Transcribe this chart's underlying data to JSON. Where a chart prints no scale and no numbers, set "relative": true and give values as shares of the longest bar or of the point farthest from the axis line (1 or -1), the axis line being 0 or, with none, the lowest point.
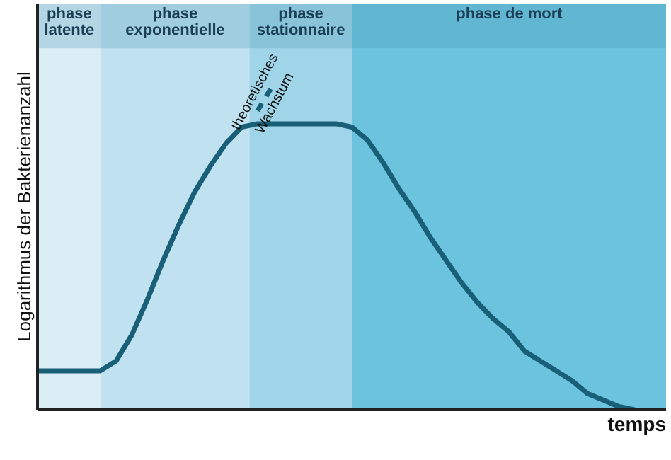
{
  "chart_data": {
    "type": "line",
    "relative": true,
    "xlabel": "temps",
    "ylabel": "Logarithmus der Bakterienanzahl",
    "categories": [
      null,
      null,
      null,
      null,
      null,
      null,
      null,
      null,
      null,
      null,
      null,
      null,
      null,
      null,
      null,
      null,
      null,
      null,
      null,
      null,
      null,
      null,
      null,
      null,
      null,
      null,
      null,
      null,
      null,
      null,
      null,
      null,
      null,
      null,
      null,
      null,
      null,
      null,
      null,
      null,
      null
    ],
    "series": [
      {
        "color": "#1a5f78",
        "values": [
          0.12,
          0.12,
          0.12,
          0.12,
          0.12,
          0.15,
          0.23,
          0.34,
          0.46,
          0.57,
          0.67,
          0.75,
          0.82,
          0.87,
          0.88,
          0.88,
          0.88,
          0.88,
          0.88,
          0.88,
          0.87,
          0.83,
          0.76,
          0.68,
          0.61,
          0.53,
          0.46,
          0.39,
          0.33,
          0.28,
          0.24,
          0.18,
          0.15,
          0.12,
          0.09,
          0.05,
          0.03,
          0.01,
          0.0,
          null,
          null
        ]
      },
      {
        "color": "#1a5f78",
        "line_style": "dashed",
        "values": [
          null,
          null,
          null,
          null,
          null,
          null,
          null,
          null,
          null,
          null,
          null,
          null,
          null,
          null,
          0.92,
          1.0,
          null,
          null,
          null,
          null,
          null,
          null,
          null,
          null,
          null,
          null,
          null,
          null,
          null,
          null,
          null,
          null,
          null,
          null,
          null,
          null,
          null,
          null,
          null,
          null,
          null
        ]
      }
    ],
    "annotations": [
      "phase\nlatente",
      "phase\nexponentielle",
      "phase\nstationnaire",
      "phase de mort",
      "theoretisches",
      "Wachstum"
    ]
  }
}
